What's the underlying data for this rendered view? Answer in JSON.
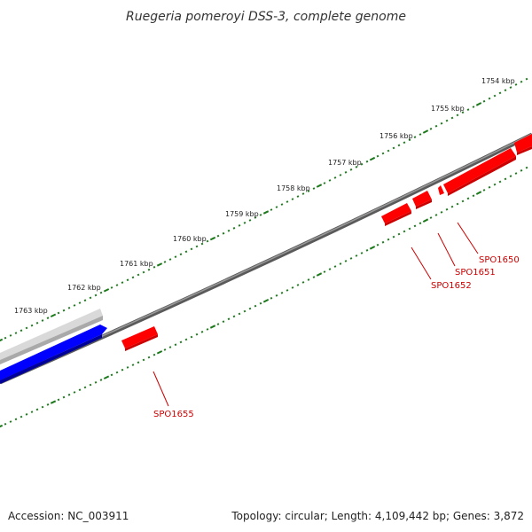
{
  "title": "Ruegeria pomeroyi DSS-3, complete genome",
  "footer": {
    "accession": "Accession: NC_003911",
    "summary": "Topology: circular; Length: 4,109,442 bp; Genes: 3,872"
  },
  "colors": {
    "tick": "#1a7a1a",
    "backbone": "#777777",
    "gene_forward": "#ff0000",
    "gene_reverse_blue": "#0000ee",
    "gene_grey": "#c8c8c8",
    "gene_label": "#cc0000"
  },
  "scale_labels": [
    "1754 kbp",
    "1755 kbp",
    "1756 kbp",
    "1757 kbp",
    "1758 kbp",
    "1759 kbp",
    "1760 kbp",
    "1761 kbp",
    "1762 kbp",
    "1763 kbp"
  ],
  "gene_labels": [
    "SPO1650",
    "SPO1651",
    "SPO1652",
    "SPO1655"
  ]
}
